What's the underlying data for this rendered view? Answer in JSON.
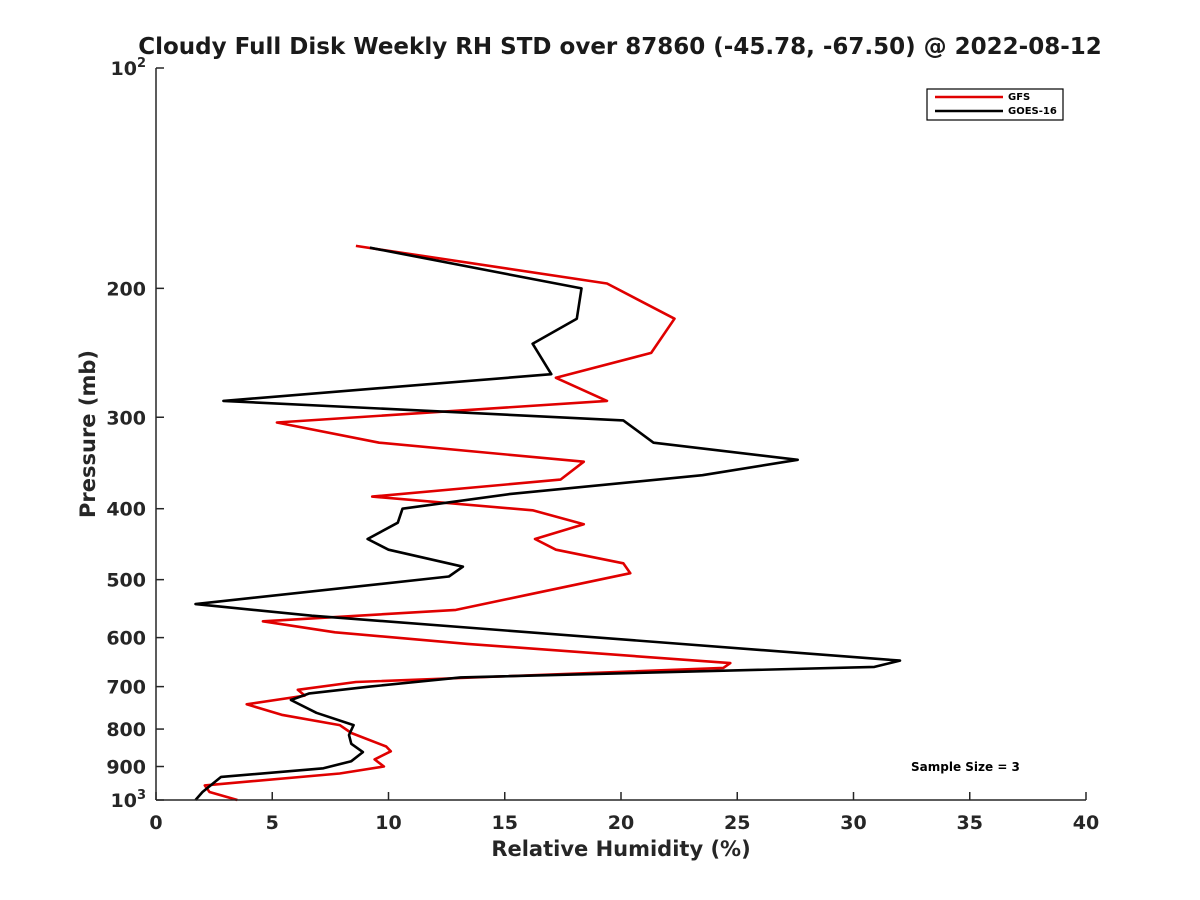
{
  "chart_data": {
    "type": "line",
    "title": "Cloudy Full Disk Weekly RH STD over 87860 (-45.78, -67.50) @ 2022-08-12",
    "xlabel": "Relative Humidity (%)",
    "ylabel": "Pressure (mb)",
    "xlim": [
      0,
      40
    ],
    "ylim": [
      100,
      1000
    ],
    "yscale": "log",
    "y_reversed": true,
    "grid": false,
    "legend_position": "top-right",
    "x_ticks": [
      "0",
      "5",
      "10",
      "15",
      "20",
      "25",
      "30",
      "35",
      "40"
    ],
    "y_ticks": [
      {
        "value": 100,
        "base": "10",
        "exp": "2"
      },
      {
        "value": 200,
        "label": "200"
      },
      {
        "value": 300,
        "label": "300"
      },
      {
        "value": 400,
        "label": "400"
      },
      {
        "value": 500,
        "label": "500"
      },
      {
        "value": 600,
        "label": "600"
      },
      {
        "value": 700,
        "label": "700"
      },
      {
        "value": 800,
        "label": "800"
      },
      {
        "value": 900,
        "label": "900"
      },
      {
        "value": 1000,
        "base": "10",
        "exp": "3"
      }
    ],
    "annotation": "Sample Size = 3",
    "series": [
      {
        "name": "GFS",
        "color": "#e00000",
        "points": [
          [
            8.6,
            175
          ],
          [
            19.4,
            197
          ],
          [
            22.3,
            220
          ],
          [
            21.3,
            245
          ],
          [
            17.2,
            265
          ],
          [
            19.4,
            285
          ],
          [
            5.2,
            305
          ],
          [
            9.6,
            325
          ],
          [
            18.4,
            345
          ],
          [
            17.4,
            365
          ],
          [
            9.3,
            385
          ],
          [
            16.2,
            402
          ],
          [
            18.4,
            420
          ],
          [
            16.3,
            440
          ],
          [
            17.2,
            455
          ],
          [
            20.1,
            475
          ],
          [
            20.4,
            490
          ],
          [
            15.9,
            525
          ],
          [
            12.9,
            550
          ],
          [
            4.6,
            570
          ],
          [
            7.7,
            590
          ],
          [
            13.4,
            612
          ],
          [
            24.7,
            650
          ],
          [
            24.4,
            660
          ],
          [
            8.6,
            690
          ],
          [
            6.1,
            707
          ],
          [
            6.4,
            720
          ],
          [
            3.9,
            740
          ],
          [
            5.4,
            765
          ],
          [
            7.9,
            790
          ],
          [
            8.4,
            810
          ],
          [
            9.9,
            845
          ],
          [
            10.1,
            858
          ],
          [
            9.4,
            880
          ],
          [
            9.8,
            900
          ],
          [
            7.9,
            920
          ],
          [
            2.1,
            955
          ],
          [
            2.3,
            975
          ],
          [
            3.5,
            1000
          ]
        ]
      },
      {
        "name": "GOES-16",
        "color": "#000000",
        "points": [
          [
            9.2,
            176
          ],
          [
            18.3,
            200
          ],
          [
            18.1,
            220
          ],
          [
            16.2,
            238
          ],
          [
            17.0,
            262
          ],
          [
            2.9,
            285
          ],
          [
            20.1,
            303
          ],
          [
            21.4,
            325
          ],
          [
            27.6,
            343
          ],
          [
            23.5,
            360
          ],
          [
            15.2,
            382
          ],
          [
            10.6,
            400
          ],
          [
            10.4,
            418
          ],
          [
            9.1,
            440
          ],
          [
            10.0,
            455
          ],
          [
            13.2,
            480
          ],
          [
            12.6,
            495
          ],
          [
            1.7,
            540
          ],
          [
            6.7,
            560
          ],
          [
            32.0,
            645
          ],
          [
            30.9,
            658
          ],
          [
            13.1,
            680
          ],
          [
            9.2,
            700
          ],
          [
            6.6,
            715
          ],
          [
            5.8,
            730
          ],
          [
            6.9,
            760
          ],
          [
            8.5,
            790
          ],
          [
            8.3,
            815
          ],
          [
            8.4,
            838
          ],
          [
            8.9,
            860
          ],
          [
            8.4,
            885
          ],
          [
            7.2,
            905
          ],
          [
            2.8,
            930
          ],
          [
            2.0,
            975
          ],
          [
            1.7,
            1000
          ]
        ]
      }
    ]
  }
}
